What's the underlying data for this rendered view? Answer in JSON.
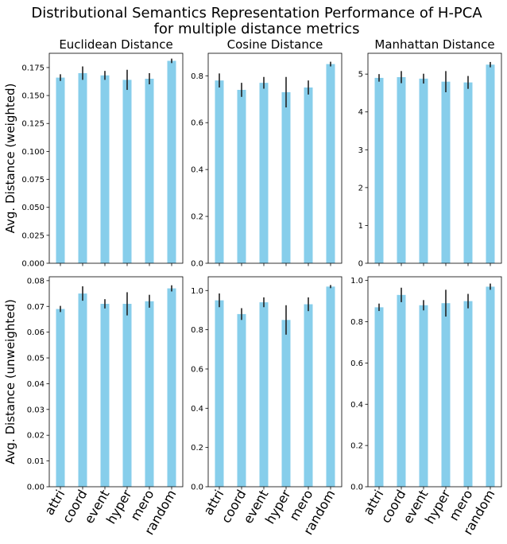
{
  "suptitle": {
    "line1": "Distributional Semantics Representation Performance of H-PCA",
    "line2": "for multiple distance metrics"
  },
  "colors": {
    "bar": "#87ceeb",
    "error": "#222222",
    "axis": "#000000"
  },
  "chart_data": [
    {
      "type": "bar",
      "row": 0,
      "col": 0,
      "title": "Euclidean Distance",
      "ylabel": "Avg. Distance (weighted)",
      "categories": [
        "attri",
        "coord",
        "event",
        "hyper",
        "mero",
        "random"
      ],
      "values": [
        0.166,
        0.17,
        0.168,
        0.164,
        0.165,
        0.181
      ],
      "errors": [
        0.003,
        0.006,
        0.004,
        0.009,
        0.005,
        0.002
      ],
      "ylim": [
        0,
        0.18775
      ],
      "yticks": [
        0,
        0.025,
        0.05,
        0.075,
        0.1,
        0.125,
        0.15,
        0.175
      ],
      "ytick_labels": [
        "0.000",
        "0.025",
        "0.050",
        "0.075",
        "0.100",
        "0.125",
        "0.150",
        "0.175"
      ]
    },
    {
      "type": "bar",
      "row": 0,
      "col": 1,
      "title": "Cosine Distance",
      "ylabel": "",
      "categories": [
        "attri",
        "coord",
        "event",
        "hyper",
        "mero",
        "random"
      ],
      "values": [
        0.78,
        0.74,
        0.77,
        0.73,
        0.75,
        0.85
      ],
      "errors": [
        0.03,
        0.03,
        0.025,
        0.065,
        0.03,
        0.01
      ],
      "ylim": [
        0,
        0.896
      ],
      "yticks": [
        0,
        0.2,
        0.4,
        0.6,
        0.8
      ],
      "ytick_labels": [
        "0.0",
        "0.2",
        "0.4",
        "0.6",
        "0.8"
      ]
    },
    {
      "type": "bar",
      "row": 0,
      "col": 2,
      "title": "Manhattan Distance",
      "ylabel": "",
      "categories": [
        "attri",
        "coord",
        "event",
        "hyper",
        "mero",
        "random"
      ],
      "values": [
        4.9,
        4.92,
        4.88,
        4.8,
        4.78,
        5.25
      ],
      "errors": [
        0.1,
        0.16,
        0.13,
        0.28,
        0.17,
        0.07
      ],
      "ylim": [
        0,
        5.55
      ],
      "yticks": [
        0,
        1,
        2,
        3,
        4,
        5
      ],
      "ytick_labels": [
        "0",
        "1",
        "2",
        "3",
        "4",
        "5"
      ]
    },
    {
      "type": "bar",
      "row": 1,
      "col": 0,
      "title": "",
      "ylabel": "Avg. Distance (unweighted)",
      "categories": [
        "attri",
        "coord",
        "event",
        "hyper",
        "mero",
        "random"
      ],
      "values": [
        0.069,
        0.075,
        0.071,
        0.071,
        0.072,
        0.077
      ],
      "errors": [
        0.0012,
        0.0028,
        0.0018,
        0.0045,
        0.0025,
        0.0012
      ],
      "ylim": [
        0,
        0.0815
      ],
      "yticks": [
        0,
        0.01,
        0.02,
        0.03,
        0.04,
        0.05,
        0.06,
        0.07,
        0.08
      ],
      "ytick_labels": [
        "0.00",
        "0.01",
        "0.02",
        "0.03",
        "0.04",
        "0.05",
        "0.06",
        "0.07",
        "0.08"
      ]
    },
    {
      "type": "bar",
      "row": 1,
      "col": 1,
      "title": "",
      "ylabel": "",
      "categories": [
        "attri",
        "coord",
        "event",
        "hyper",
        "mero",
        "random"
      ],
      "values": [
        0.95,
        0.88,
        0.94,
        0.85,
        0.93,
        1.02
      ],
      "errors": [
        0.035,
        0.03,
        0.025,
        0.075,
        0.035,
        0.008
      ],
      "ylim": [
        0,
        1.07
      ],
      "yticks": [
        0,
        0.2,
        0.4,
        0.6,
        0.8,
        1.0
      ],
      "ytick_labels": [
        "0.0",
        "0.2",
        "0.4",
        "0.6",
        "0.8",
        "1.0"
      ]
    },
    {
      "type": "bar",
      "row": 1,
      "col": 2,
      "title": "",
      "ylabel": "",
      "categories": [
        "attri",
        "coord",
        "event",
        "hyper",
        "mero",
        "random"
      ],
      "values": [
        0.87,
        0.93,
        0.88,
        0.89,
        0.9,
        0.97
      ],
      "errors": [
        0.018,
        0.035,
        0.025,
        0.065,
        0.035,
        0.015
      ],
      "ylim": [
        0,
        1.018
      ],
      "yticks": [
        0,
        0.2,
        0.4,
        0.6,
        0.8,
        1.0
      ],
      "ytick_labels": [
        "0.0",
        "0.2",
        "0.4",
        "0.6",
        "0.8",
        "1.0"
      ]
    }
  ]
}
